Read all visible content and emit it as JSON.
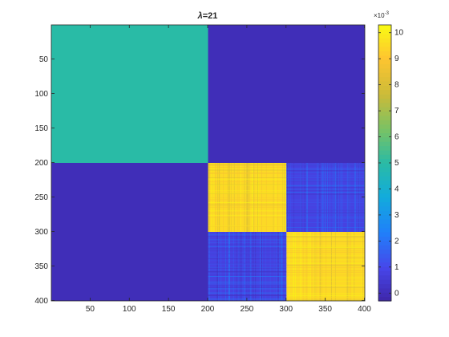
{
  "chart_data": {
    "type": "heatmap",
    "title_symbol": "λ",
    "title_rest": "=21",
    "title": "λ=21",
    "xlabel": "",
    "ylabel": "",
    "matrix_size": 400,
    "xlim": [
      0.5,
      400.5
    ],
    "ylim": [
      0.5,
      400.5
    ],
    "y_direction": "reverse",
    "x_ticks": [
      50,
      100,
      150,
      200,
      250,
      300,
      350,
      400
    ],
    "x_tick_labels": [
      "50",
      "100",
      "150",
      "200",
      "250",
      "300",
      "350",
      "400"
    ],
    "y_ticks": [
      50,
      100,
      150,
      200,
      250,
      300,
      350,
      400
    ],
    "y_tick_labels": [
      "50",
      "100",
      "150",
      "200",
      "250",
      "300",
      "350",
      "400"
    ],
    "colormap": "parula",
    "clim": [
      -0.0003,
      0.0103
    ],
    "colorbar": {
      "exponent_label": "×10",
      "exponent_power": "-3",
      "ticks": [
        0,
        1,
        2,
        3,
        4,
        5,
        6,
        7,
        8,
        9,
        10
      ],
      "tick_labels": [
        "0",
        "1",
        "2",
        "3",
        "4",
        "5",
        "6",
        "7",
        "8",
        "9",
        "10"
      ]
    },
    "blocks": [
      {
        "rows": [
          1,
          200
        ],
        "cols": [
          1,
          200
        ],
        "value": 0.005,
        "pattern": "uniform"
      },
      {
        "rows": [
          1,
          200
        ],
        "cols": [
          201,
          400
        ],
        "value": 0.0,
        "pattern": "uniform"
      },
      {
        "rows": [
          201,
          400
        ],
        "cols": [
          1,
          200
        ],
        "value": 0.0,
        "pattern": "uniform"
      },
      {
        "rows": [
          201,
          300
        ],
        "cols": [
          201,
          300
        ],
        "value": 0.0095,
        "pattern": "noisy"
      },
      {
        "rows": [
          301,
          400
        ],
        "cols": [
          301,
          400
        ],
        "value": 0.0095,
        "pattern": "noisy"
      },
      {
        "rows": [
          201,
          300
        ],
        "cols": [
          301,
          400
        ],
        "value": 0.0008,
        "pattern": "noisy"
      },
      {
        "rows": [
          301,
          400
        ],
        "cols": [
          201,
          300
        ],
        "value": 0.0008,
        "pattern": "noisy"
      }
    ]
  }
}
